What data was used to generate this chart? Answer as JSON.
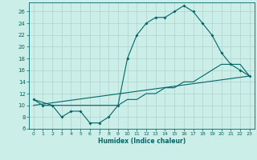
{
  "title": "",
  "xlabel": "Humidex (Indice chaleur)",
  "ylabel": "",
  "bg_color": "#cceee8",
  "grid_color": "#b0d0cc",
  "line_color": "#006666",
  "xlim": [
    -0.5,
    23.5
  ],
  "ylim": [
    6,
    27.5
  ],
  "xticks": [
    0,
    1,
    2,
    3,
    4,
    5,
    6,
    7,
    8,
    9,
    10,
    11,
    12,
    13,
    14,
    15,
    16,
    17,
    18,
    19,
    20,
    21,
    22,
    23
  ],
  "yticks": [
    6,
    8,
    10,
    12,
    14,
    16,
    18,
    20,
    22,
    24,
    26
  ],
  "series1_x": [
    0,
    1,
    2,
    3,
    4,
    5,
    6,
    7,
    8,
    9,
    10,
    11,
    12,
    13,
    14,
    15,
    16,
    17,
    18,
    19,
    20,
    21,
    22,
    23
  ],
  "series1_y": [
    11,
    10,
    10,
    8,
    9,
    9,
    7,
    7,
    8,
    10,
    18,
    22,
    24,
    25,
    25,
    26,
    27,
    26,
    24,
    22,
    19,
    17,
    16,
    15
  ],
  "series2_x": [
    0,
    1,
    2,
    3,
    4,
    5,
    6,
    7,
    8,
    9,
    10,
    11,
    12,
    13,
    14,
    15,
    16,
    17,
    18,
    19,
    20,
    21,
    22,
    23
  ],
  "series2_y": [
    11,
    10.5,
    10,
    10,
    10,
    10,
    10,
    10,
    10,
    10,
    11,
    11,
    12,
    12,
    13,
    13,
    14,
    14,
    15,
    16,
    17,
    17,
    17,
    15
  ],
  "series3_x": [
    0,
    23
  ],
  "series3_y": [
    10,
    15
  ]
}
